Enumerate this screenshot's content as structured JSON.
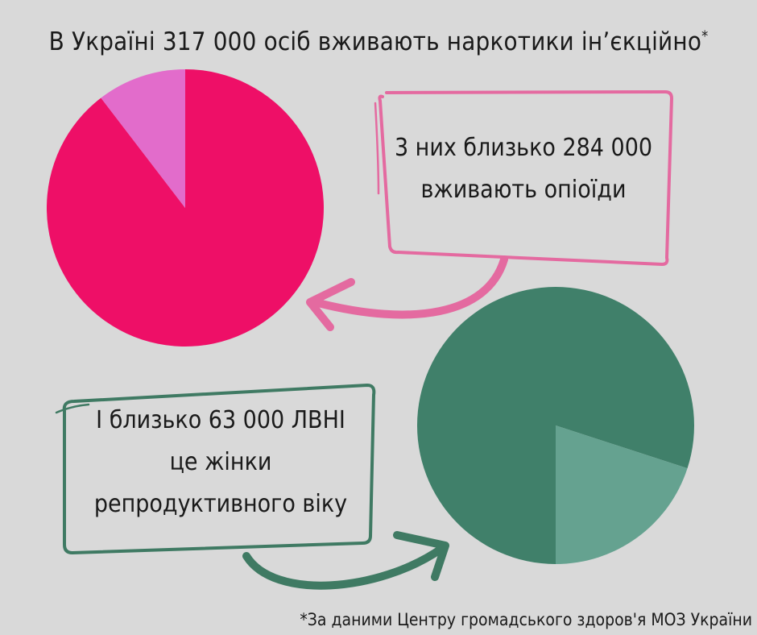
{
  "title": {
    "text": "В Україні 317 000 осіб вживають наркотики ін’єкційно",
    "marker": "*"
  },
  "callout_opioids": {
    "line1": "3 них близько 284 000",
    "line2": "вживають опіоїди"
  },
  "callout_women": {
    "line1": "І близько 63 000 ЛВНІ",
    "line2": "це жінки",
    "line3": "репродуктивного віку"
  },
  "footnote": "*За даними Центру громадського здоров'я МОЗ України",
  "colors": {
    "background": "#d9d9d9",
    "pink_main": "#ee0f67",
    "pink_light": "#e26ccb",
    "pink_outline": "#e46aa0",
    "green_main": "#40806a",
    "green_light": "#65a290",
    "green_outline": "#3f7a63"
  },
  "chart_data": [
    {
      "type": "pie",
      "total": 317000,
      "slices": [
        {
          "value": 284000,
          "color": "#ee0f67"
        },
        {
          "value": 33000,
          "color": "#e26ccb"
        }
      ]
    },
    {
      "type": "pie",
      "slices": [
        {
          "value": 0.8,
          "color": "#40806a"
        },
        {
          "value": 0.2,
          "color": "#65a290"
        }
      ]
    }
  ]
}
